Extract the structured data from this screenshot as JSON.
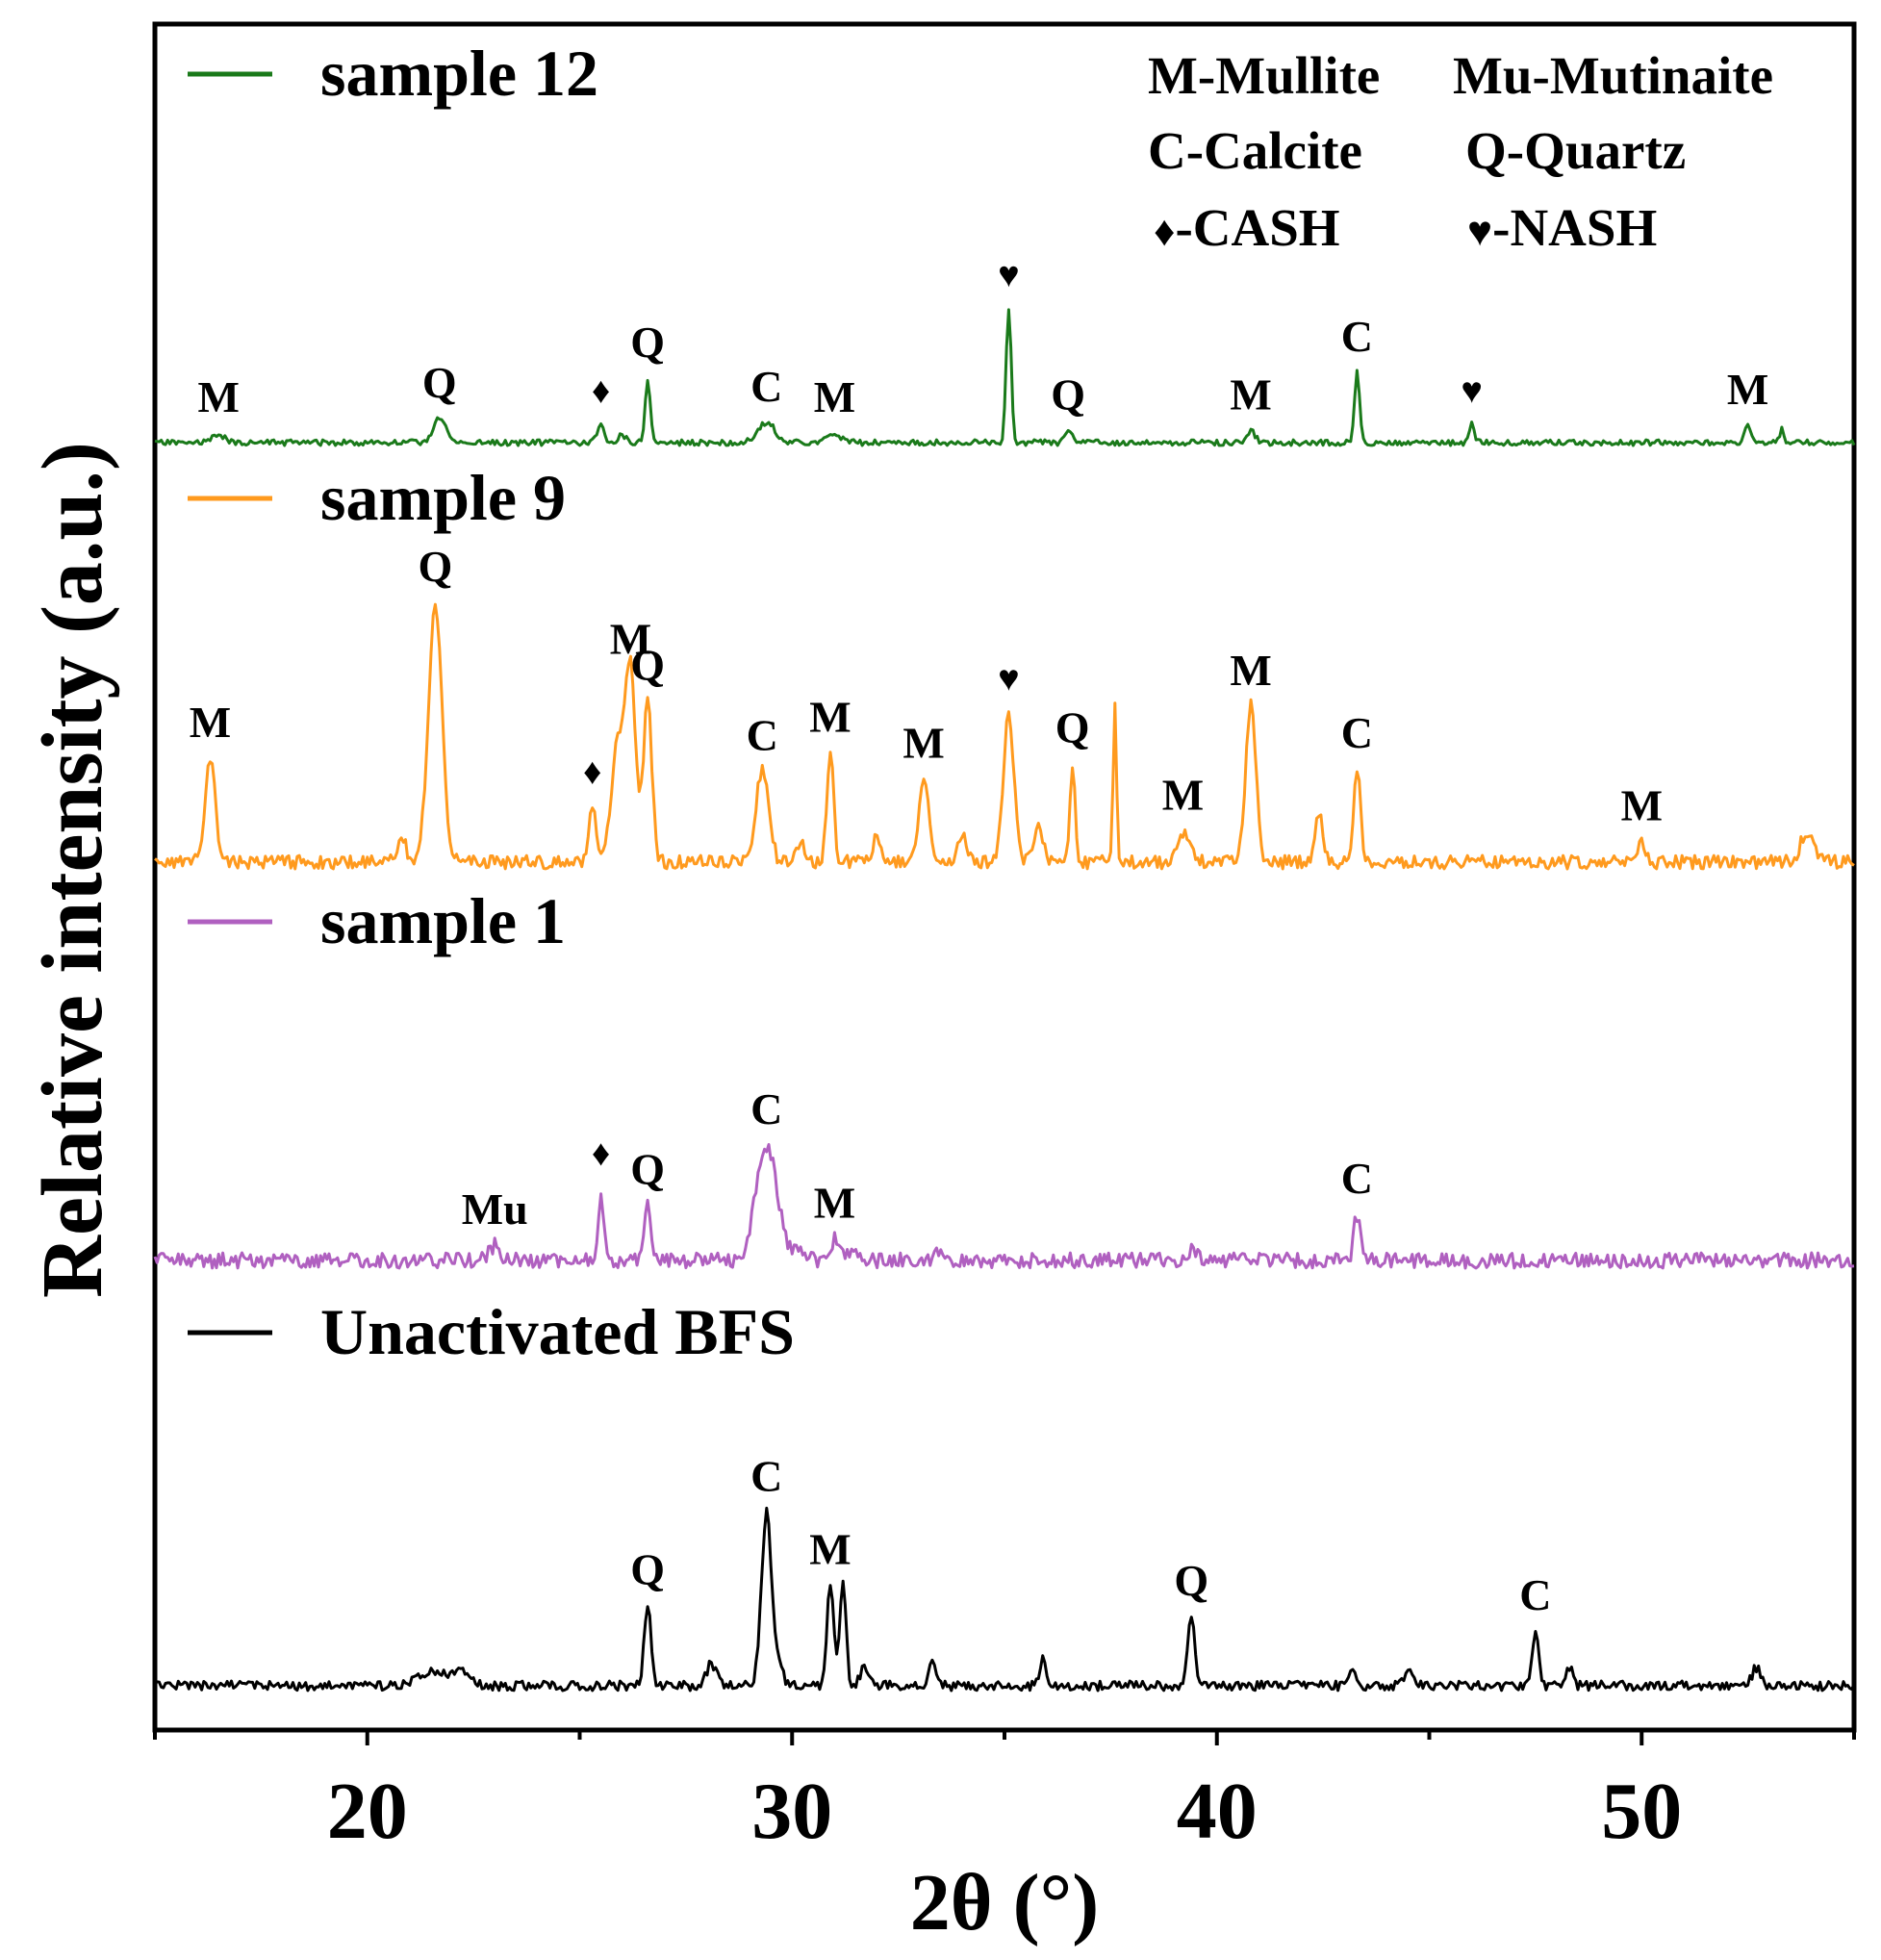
{
  "chart_data": {
    "type": "line",
    "title": "",
    "xlabel": "2θ (°)",
    "ylabel": "Relative intensity (a.u.)",
    "xlim": [
      15,
      55
    ],
    "xticks": [
      20,
      30,
      40,
      50
    ],
    "grid": false,
    "legend_note": "phase key at top-right",
    "phase_key": [
      {
        "text": "M-Mullite"
      },
      {
        "text": "Mu-Mutinaite"
      },
      {
        "text": "C-Calcite"
      },
      {
        "text": "Q-Quartz"
      },
      {
        "text": "-CASH",
        "symbol": "♦"
      },
      {
        "text": "-NASH",
        "symbol": "♥"
      }
    ],
    "series": [
      {
        "name": "sample 12",
        "color": "#1a7a1a",
        "peaks": [
          {
            "x": 16.5,
            "h": 0.07,
            "w": 0.12,
            "label": "M"
          },
          {
            "x": 21.7,
            "h": 0.18,
            "w": 0.15,
            "label": "Q"
          },
          {
            "x": 25.5,
            "h": 0.14,
            "w": 0.08,
            "label": "♦"
          },
          {
            "x": 26.0,
            "h": 0.06,
            "w": 0.08
          },
          {
            "x": 26.6,
            "h": 0.48,
            "w": 0.06,
            "label": "Q"
          },
          {
            "x": 29.4,
            "h": 0.15,
            "w": 0.2,
            "label": "C"
          },
          {
            "x": 31.0,
            "h": 0.07,
            "w": 0.15,
            "label": "M"
          },
          {
            "x": 35.1,
            "h": 1.0,
            "w": 0.06,
            "label": "♥"
          },
          {
            "x": 36.5,
            "h": 0.09,
            "w": 0.08,
            "label": "Q"
          },
          {
            "x": 40.8,
            "h": 0.09,
            "w": 0.1,
            "label": "M"
          },
          {
            "x": 43.3,
            "h": 0.52,
            "w": 0.06,
            "label": "C"
          },
          {
            "x": 46.0,
            "h": 0.14,
            "w": 0.06,
            "label": "♥"
          },
          {
            "x": 52.5,
            "h": 0.13,
            "w": 0.07,
            "label": "M"
          },
          {
            "x": 53.3,
            "h": 0.1,
            "w": 0.05
          }
        ]
      },
      {
        "name": "sample 9",
        "color": "#ff9a1e",
        "peaks": [
          {
            "x": 16.3,
            "h": 0.4,
            "w": 0.12,
            "label": "M"
          },
          {
            "x": 20.8,
            "h": 0.1,
            "w": 0.1
          },
          {
            "x": 21.6,
            "h": 1.0,
            "w": 0.16,
            "label": "Q"
          },
          {
            "x": 25.3,
            "h": 0.22,
            "w": 0.07,
            "label": "♦"
          },
          {
            "x": 25.9,
            "h": 0.45,
            "w": 0.15
          },
          {
            "x": 26.2,
            "h": 0.72,
            "w": 0.12,
            "label": "M"
          },
          {
            "x": 26.6,
            "h": 0.62,
            "w": 0.1,
            "label": "Q"
          },
          {
            "x": 29.3,
            "h": 0.35,
            "w": 0.15,
            "label": "C"
          },
          {
            "x": 30.2,
            "h": 0.08,
            "w": 0.1
          },
          {
            "x": 30.9,
            "h": 0.42,
            "w": 0.08,
            "label": "M"
          },
          {
            "x": 32.0,
            "h": 0.1,
            "w": 0.08
          },
          {
            "x": 33.1,
            "h": 0.32,
            "w": 0.12,
            "label": "M"
          },
          {
            "x": 34.0,
            "h": 0.1,
            "w": 0.1
          },
          {
            "x": 35.1,
            "h": 0.58,
            "w": 0.12,
            "label": "♥"
          },
          {
            "x": 35.8,
            "h": 0.15,
            "w": 0.1
          },
          {
            "x": 36.6,
            "h": 0.38,
            "w": 0.06,
            "label": "Q"
          },
          {
            "x": 37.6,
            "h": 0.6,
            "w": 0.04
          },
          {
            "x": 39.2,
            "h": 0.12,
            "w": 0.15,
            "label": "M"
          },
          {
            "x": 40.8,
            "h": 0.6,
            "w": 0.12,
            "label": "M"
          },
          {
            "x": 42.4,
            "h": 0.18,
            "w": 0.1
          },
          {
            "x": 43.3,
            "h": 0.36,
            "w": 0.08,
            "label": "C"
          },
          {
            "x": 50.0,
            "h": 0.08,
            "w": 0.1,
            "label": "M"
          },
          {
            "x": 53.9,
            "h": 0.12,
            "w": 0.15
          }
        ]
      },
      {
        "name": "sample 1",
        "color": "#b060c0",
        "peaks": [
          {
            "x": 23.0,
            "h": 0.1,
            "w": 0.12,
            "label": "Mu"
          },
          {
            "x": 25.5,
            "h": 0.48,
            "w": 0.06,
            "label": "♦"
          },
          {
            "x": 26.6,
            "h": 0.36,
            "w": 0.08,
            "label": "Q"
          },
          {
            "x": 29.4,
            "h": 0.75,
            "w": 0.25,
            "label": "C"
          },
          {
            "x": 30.2,
            "h": 0.08,
            "w": 0.15
          },
          {
            "x": 31.0,
            "h": 0.14,
            "w": 0.1,
            "label": "M"
          },
          {
            "x": 31.4,
            "h": 0.08,
            "w": 0.1
          },
          {
            "x": 33.5,
            "h": 0.06,
            "w": 0.15
          },
          {
            "x": 39.4,
            "h": 0.06,
            "w": 0.12
          },
          {
            "x": 43.3,
            "h": 0.3,
            "w": 0.07,
            "label": "C"
          }
        ]
      },
      {
        "name": "Unactivated BFS",
        "color": "#000000",
        "peaks": [
          {
            "x": 21.5,
            "h": 0.08,
            "w": 0.3
          },
          {
            "x": 22.2,
            "h": 0.09,
            "w": 0.2
          },
          {
            "x": 26.6,
            "h": 0.44,
            "w": 0.08,
            "label": "Q"
          },
          {
            "x": 28.1,
            "h": 0.12,
            "w": 0.12
          },
          {
            "x": 29.4,
            "h": 0.95,
            "w": 0.12,
            "label": "C"
          },
          {
            "x": 29.7,
            "h": 0.12,
            "w": 0.08
          },
          {
            "x": 30.9,
            "h": 0.55,
            "w": 0.08,
            "label": "M"
          },
          {
            "x": 31.2,
            "h": 0.58,
            "w": 0.07
          },
          {
            "x": 31.7,
            "h": 0.1,
            "w": 0.1
          },
          {
            "x": 33.3,
            "h": 0.15,
            "w": 0.08
          },
          {
            "x": 35.9,
            "h": 0.14,
            "w": 0.08
          },
          {
            "x": 39.4,
            "h": 0.38,
            "w": 0.08,
            "label": "Q"
          },
          {
            "x": 43.2,
            "h": 0.08,
            "w": 0.1
          },
          {
            "x": 44.5,
            "h": 0.08,
            "w": 0.1
          },
          {
            "x": 47.5,
            "h": 0.3,
            "w": 0.08,
            "label": "C"
          },
          {
            "x": 48.3,
            "h": 0.1,
            "w": 0.08
          },
          {
            "x": 52.7,
            "h": 0.1,
            "w": 0.1
          }
        ]
      }
    ]
  }
}
